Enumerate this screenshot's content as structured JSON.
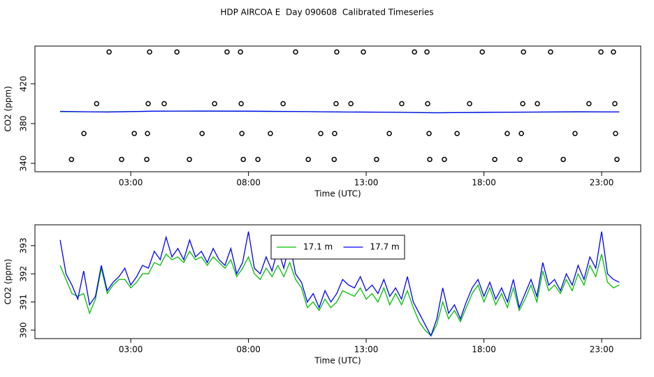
{
  "title": "HDP AIRCOA E  Day 090608  Calibrated Timeseries",
  "chart_data": [
    {
      "type": "line",
      "xlabel": "Time (UTC)",
      "ylabel": "CO2 (ppm)",
      "xlim": [
        -1.07,
        24.66
      ],
      "ylim": [
        331.6,
        457.9
      ],
      "xticks": [
        {
          "value": 3,
          "label": "03:00"
        },
        {
          "value": 8,
          "label": "08:00"
        },
        {
          "value": 13,
          "label": "13:00"
        },
        {
          "value": 18,
          "label": "18:00"
        },
        {
          "value": 23,
          "label": "23:00"
        }
      ],
      "yticks": [
        340,
        380,
        420
      ],
      "series": [
        {
          "color": "#00c000",
          "x": [
            0,
            2,
            4,
            6,
            8,
            10,
            12,
            14,
            16,
            18,
            20,
            22,
            23.75
          ],
          "values": [
            392.0,
            391.8,
            392.4,
            392.5,
            392.3,
            392.2,
            391.6,
            391.5,
            391.0,
            391.3,
            391.5,
            391.7,
            391.7
          ]
        },
        {
          "color": "#0000ff",
          "x": [
            0,
            2,
            4,
            6,
            8,
            10,
            12,
            14,
            16,
            18,
            20,
            22,
            23.75
          ],
          "values": [
            392.3,
            391.6,
            392.5,
            392.6,
            392.5,
            392.1,
            391.7,
            391.4,
            390.8,
            391.3,
            391.6,
            391.9,
            391.7
          ]
        },
        {
          "type": "scatter",
          "color": "#000000",
          "x": [
            2.08,
            3.8,
            4.96,
            7.09,
            7.66,
            10.0,
            11.75,
            12.88,
            15.05,
            15.58,
            17.93,
            19.68,
            20.83,
            22.97,
            23.5,
            1.55,
            3.74,
            4.42,
            6.56,
            7.69,
            9.47,
            11.72,
            12.35,
            14.51,
            15.61,
            17.39,
            19.65,
            20.27,
            22.46,
            23.56,
            1.01,
            3.15,
            3.71,
            6.03,
            7.72,
            8.93,
            11.07,
            11.66,
            13.98,
            15.67,
            16.86,
            18.99,
            19.59,
            21.87,
            23.59,
            0.48,
            2.61,
            3.68,
            5.49,
            7.78,
            8.4,
            10.54,
            11.64,
            13.44,
            15.7,
            16.32,
            18.46,
            19.53,
            21.37,
            23.65
          ],
          "values": [
            452,
            452,
            452,
            452,
            452,
            452,
            452,
            452,
            452,
            452,
            452,
            452,
            452,
            452,
            452,
            400,
            400,
            400,
            400,
            400,
            400,
            400,
            400,
            400,
            400,
            400,
            400,
            400,
            400,
            400,
            370,
            370,
            370,
            370,
            370,
            370,
            370,
            370,
            370,
            370,
            370,
            370,
            370,
            370,
            370,
            344,
            344,
            344,
            344,
            344,
            344,
            344,
            344,
            344,
            344,
            344,
            344,
            344,
            344,
            344
          ]
        }
      ]
    },
    {
      "type": "line",
      "xlabel": "Time (UTC)",
      "ylabel": "CO2 (ppm)",
      "legend": "top",
      "xlim": [
        -1.07,
        24.66
      ],
      "ylim": [
        389.7,
        393.74
      ],
      "xticks": [
        {
          "value": 3,
          "label": "03:00"
        },
        {
          "value": 8,
          "label": "08:00"
        },
        {
          "value": 13,
          "label": "13:00"
        },
        {
          "value": 18,
          "label": "18:00"
        },
        {
          "value": 23,
          "label": "23:00"
        }
      ],
      "yticks": [
        390,
        391,
        392,
        393
      ],
      "series": [
        {
          "name": "17.1 m",
          "color": "#00c000",
          "x": [
            0,
            0.25,
            0.5,
            0.75,
            1,
            1.25,
            1.5,
            1.75,
            2,
            2.25,
            2.5,
            2.75,
            3,
            3.25,
            3.5,
            3.75,
            4,
            4.25,
            4.5,
            4.75,
            5,
            5.25,
            5.5,
            5.75,
            6,
            6.25,
            6.5,
            6.75,
            7,
            7.25,
            7.5,
            7.75,
            8,
            8.25,
            8.5,
            8.75,
            9,
            9.25,
            9.5,
            9.75,
            10,
            10.25,
            10.5,
            10.75,
            11,
            11.25,
            11.5,
            11.75,
            12,
            12.25,
            12.5,
            12.75,
            13,
            13.25,
            13.5,
            13.75,
            14,
            14.25,
            14.5,
            14.75,
            15,
            15.25,
            15.5,
            15.75,
            16,
            16.25,
            16.5,
            16.75,
            17,
            17.25,
            17.5,
            17.75,
            18,
            18.25,
            18.5,
            18.75,
            19,
            19.25,
            19.5,
            19.75,
            20,
            20.25,
            20.5,
            20.75,
            21,
            21.25,
            21.5,
            21.75,
            22,
            22.25,
            22.5,
            22.75,
            23,
            23.25,
            23.5,
            23.75
          ],
          "values": [
            392.3,
            391.8,
            391.3,
            391.2,
            391.3,
            390.6,
            391.1,
            392.2,
            391.3,
            391.6,
            391.8,
            391.8,
            391.5,
            391.7,
            392.0,
            392.0,
            392.4,
            392.3,
            392.7,
            392.5,
            392.6,
            392.4,
            392.8,
            392.5,
            392.6,
            392.3,
            392.6,
            392.4,
            392.2,
            392.5,
            391.9,
            392.2,
            392.6,
            392.0,
            391.8,
            392.2,
            391.9,
            392.3,
            391.9,
            392.4,
            391.8,
            391.5,
            390.8,
            391.0,
            390.7,
            391.1,
            390.8,
            391.0,
            391.4,
            391.3,
            391.2,
            391.5,
            391.1,
            391.3,
            391.0,
            391.5,
            390.9,
            391.3,
            390.9,
            391.4,
            390.8,
            390.3,
            390.0,
            389.8,
            390.2,
            391.0,
            390.4,
            390.7,
            390.3,
            390.8,
            391.3,
            391.6,
            391.0,
            391.5,
            390.9,
            391.3,
            390.8,
            391.5,
            390.7,
            391.1,
            391.6,
            391.0,
            392.1,
            391.4,
            391.6,
            391.3,
            391.8,
            391.4,
            392.0,
            391.6,
            392.3,
            391.9,
            392.7,
            391.7,
            391.5,
            391.6
          ]
        },
        {
          "name": "17.7 m",
          "color": "#0000ff",
          "x": [
            0,
            0.25,
            0.5,
            0.75,
            1,
            1.25,
            1.5,
            1.75,
            2,
            2.25,
            2.5,
            2.75,
            3,
            3.25,
            3.5,
            3.75,
            4,
            4.25,
            4.5,
            4.75,
            5,
            5.25,
            5.5,
            5.75,
            6,
            6.25,
            6.5,
            6.75,
            7,
            7.25,
            7.5,
            7.75,
            8,
            8.25,
            8.5,
            8.75,
            9,
            9.25,
            9.5,
            9.75,
            10,
            10.25,
            10.5,
            10.75,
            11,
            11.25,
            11.5,
            11.75,
            12,
            12.25,
            12.5,
            12.75,
            13,
            13.25,
            13.5,
            13.75,
            14,
            14.25,
            14.5,
            14.75,
            15,
            15.25,
            15.5,
            15.75,
            16,
            16.25,
            16.5,
            16.75,
            17,
            17.25,
            17.5,
            17.75,
            18,
            18.25,
            18.5,
            18.75,
            19,
            19.25,
            19.5,
            19.75,
            20,
            20.25,
            20.5,
            20.75,
            21,
            21.25,
            21.5,
            21.75,
            22,
            22.25,
            22.5,
            22.75,
            23,
            23.25,
            23.5,
            23.75
          ],
          "values": [
            393.2,
            392.0,
            391.6,
            391.1,
            392.1,
            390.9,
            391.2,
            392.3,
            391.4,
            391.7,
            391.9,
            392.2,
            391.6,
            391.9,
            392.3,
            392.2,
            392.8,
            392.5,
            393.3,
            392.6,
            392.9,
            392.5,
            393.2,
            392.6,
            392.8,
            392.4,
            392.9,
            392.5,
            392.3,
            392.9,
            392.0,
            392.4,
            393.5,
            392.2,
            392.0,
            392.6,
            392.1,
            392.9,
            392.2,
            393.1,
            392.0,
            391.7,
            391.0,
            391.3,
            390.8,
            391.4,
            391.0,
            391.3,
            391.8,
            391.6,
            391.5,
            391.9,
            391.4,
            391.6,
            391.3,
            391.8,
            391.2,
            391.5,
            391.1,
            391.9,
            391.0,
            390.6,
            390.2,
            389.8,
            390.4,
            391.5,
            390.6,
            390.9,
            390.4,
            391.0,
            391.5,
            391.8,
            391.2,
            391.7,
            391.1,
            391.5,
            391.0,
            391.8,
            390.8,
            391.3,
            391.8,
            391.2,
            392.4,
            391.6,
            391.8,
            391.4,
            392.0,
            391.6,
            392.3,
            391.8,
            392.6,
            392.2,
            393.5,
            392.0,
            391.8,
            391.7
          ]
        }
      ]
    }
  ]
}
